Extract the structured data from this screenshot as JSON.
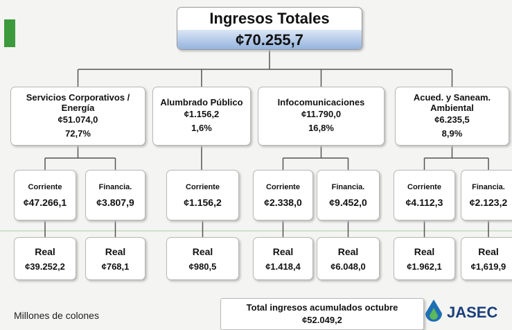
{
  "root": {
    "title": "Ingresos Totales",
    "value": "¢70.255,7"
  },
  "branches": [
    {
      "name": "Servicios Corporativos / Energía",
      "value": "¢51.074,0",
      "share": "72,7%",
      "accounts": [
        {
          "name": "Corriente",
          "value": "¢47.266,1",
          "real_label": "Real",
          "real": "¢39.252,2"
        },
        {
          "name": "Financia.",
          "value": "¢3.807,9",
          "real_label": "Real",
          "real": "¢768,1"
        }
      ]
    },
    {
      "name": "Alumbrado Público",
      "value": "¢1.156,2",
      "share": "1,6%",
      "accounts": [
        {
          "name": "Corriente",
          "value": "¢1.156,2",
          "real_label": "Real",
          "real": "¢980,5"
        }
      ]
    },
    {
      "name": "Infocomunicaciones",
      "value": "¢11.790,0",
      "share": "16,8%",
      "accounts": [
        {
          "name": "Corriente",
          "value": "¢2.338,0",
          "real_label": "Real",
          "real": "¢1.418,4"
        },
        {
          "name": "Financia.",
          "value": "¢9.452,0",
          "real_label": "Real",
          "real": "¢6.048,0"
        }
      ]
    },
    {
      "name": "Acued. y Saneam. Ambiental",
      "value": "¢6.235,5",
      "share": "8,9%",
      "accounts": [
        {
          "name": "Corriente",
          "value": "¢4.112,3",
          "real_label": "Real",
          "real": "¢1.962,1"
        },
        {
          "name": "Financia.",
          "value": "¢2.123,2",
          "real_label": "Real",
          "real": "¢1,619,9"
        }
      ]
    }
  ],
  "footer": {
    "note": "Millones de colones",
    "total_label": "Total ingresos acumulados octubre",
    "total_value": "¢52.049,2",
    "logo": "JASEC"
  }
}
